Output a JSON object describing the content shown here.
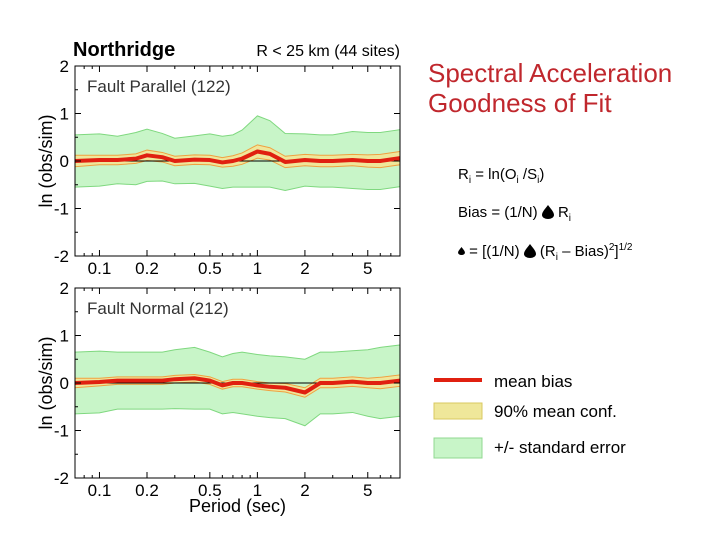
{
  "chart_data": {
    "type": "line",
    "site_name": "Northridge",
    "distance_note": "R < 25 km (44 sites)",
    "xlabel": "Period (sec)",
    "ylabel": "ln (obs/sim)",
    "xscale": "log",
    "xlim": [
      0.07,
      8
    ],
    "ylim": [
      -2,
      2
    ],
    "xticks": [
      "0.1",
      "0.2",
      "0.5",
      "1",
      "2",
      "5"
    ],
    "xtick_values": [
      0.1,
      0.2,
      0.5,
      1,
      2,
      5
    ],
    "yticks": [
      "2",
      "1",
      "0",
      "-1",
      "-2"
    ],
    "ytick_values": [
      2,
      1,
      0,
      -1,
      -2
    ],
    "grid": false,
    "legend_placement": "right",
    "panels": [
      {
        "label": "Fault Parallel (122)",
        "period": [
          0.07,
          0.1,
          0.13,
          0.17,
          0.2,
          0.25,
          0.3,
          0.4,
          0.5,
          0.6,
          0.7,
          0.8,
          1.0,
          1.2,
          1.5,
          2.0,
          2.5,
          3.0,
          4.0,
          5.0,
          6.0,
          8.0
        ],
        "mean_bias": [
          0.0,
          0.02,
          0.02,
          0.05,
          0.12,
          0.08,
          0.0,
          0.03,
          0.02,
          -0.03,
          0.0,
          0.05,
          0.2,
          0.15,
          -0.02,
          0.02,
          0.0,
          0.0,
          0.02,
          0.0,
          0.0,
          0.06
        ],
        "conf90_half_width": [
          0.12,
          0.1,
          0.1,
          0.1,
          0.11,
          0.1,
          0.1,
          0.1,
          0.1,
          0.1,
          0.11,
          0.12,
          0.14,
          0.13,
          0.12,
          0.12,
          0.12,
          0.12,
          0.12,
          0.13,
          0.14,
          0.14
        ],
        "std_error_half_width": [
          0.55,
          0.55,
          0.5,
          0.55,
          0.55,
          0.5,
          0.48,
          0.5,
          0.55,
          0.55,
          0.55,
          0.6,
          0.75,
          0.7,
          0.6,
          0.55,
          0.55,
          0.55,
          0.6,
          0.6,
          0.6,
          0.6
        ]
      },
      {
        "label": "Fault Normal (212)",
        "period": [
          0.07,
          0.1,
          0.13,
          0.17,
          0.2,
          0.25,
          0.3,
          0.4,
          0.5,
          0.6,
          0.7,
          0.8,
          1.0,
          1.2,
          1.5,
          2.0,
          2.5,
          3.0,
          4.0,
          5.0,
          6.0,
          8.0
        ],
        "mean_bias": [
          0.0,
          0.02,
          0.05,
          0.05,
          0.05,
          0.05,
          0.08,
          0.1,
          0.05,
          -0.05,
          0.0,
          0.0,
          -0.05,
          -0.08,
          -0.1,
          -0.2,
          0.0,
          0.0,
          0.03,
          0.0,
          0.0,
          0.05
        ],
        "conf90_half_width": [
          0.1,
          0.08,
          0.08,
          0.08,
          0.08,
          0.08,
          0.08,
          0.08,
          0.08,
          0.08,
          0.08,
          0.08,
          0.08,
          0.08,
          0.09,
          0.1,
          0.1,
          0.1,
          0.1,
          0.1,
          0.12,
          0.12
        ],
        "std_error_half_width": [
          0.65,
          0.65,
          0.6,
          0.6,
          0.6,
          0.6,
          0.62,
          0.65,
          0.6,
          0.6,
          0.62,
          0.65,
          0.65,
          0.65,
          0.65,
          0.7,
          0.65,
          0.65,
          0.65,
          0.7,
          0.75,
          0.75
        ]
      }
    ],
    "legend": [
      {
        "label": "mean bias",
        "color": "#e02010"
      },
      {
        "label": "90% mean conf.",
        "color": "#efe79a"
      },
      {
        "label": "+/- standard error",
        "color": "#c8f5c8"
      }
    ]
  },
  "title": {
    "line1": "Spectral Acceleration",
    "line2": "Goodness of Fit"
  },
  "formulas": {
    "f1_R": "R",
    "f1_i": "i",
    "f1_mid": " = ln(O",
    "f1_i2": "i",
    "f1_slash": " /S",
    "f1_i3": "i",
    "f1_end": ")",
    "f2_start": "Bias = (1/N) ",
    "f2_R": " R",
    "f2_i": "i",
    "f3_start": " = [(1/N) ",
    "f3_mid": " (R",
    "f3_i": "i",
    "f3_end": " – Bias)",
    "f3_sq": "2",
    "f3_close": "]",
    "f3_pow": "1/2"
  },
  "colors": {
    "title": "#c0272d",
    "mean_line": "#e02010",
    "conf_band": "#efe79a",
    "conf_edge": "#f0a040",
    "std_band": "#c8f5c8",
    "std_edge": "#7fd87f"
  }
}
